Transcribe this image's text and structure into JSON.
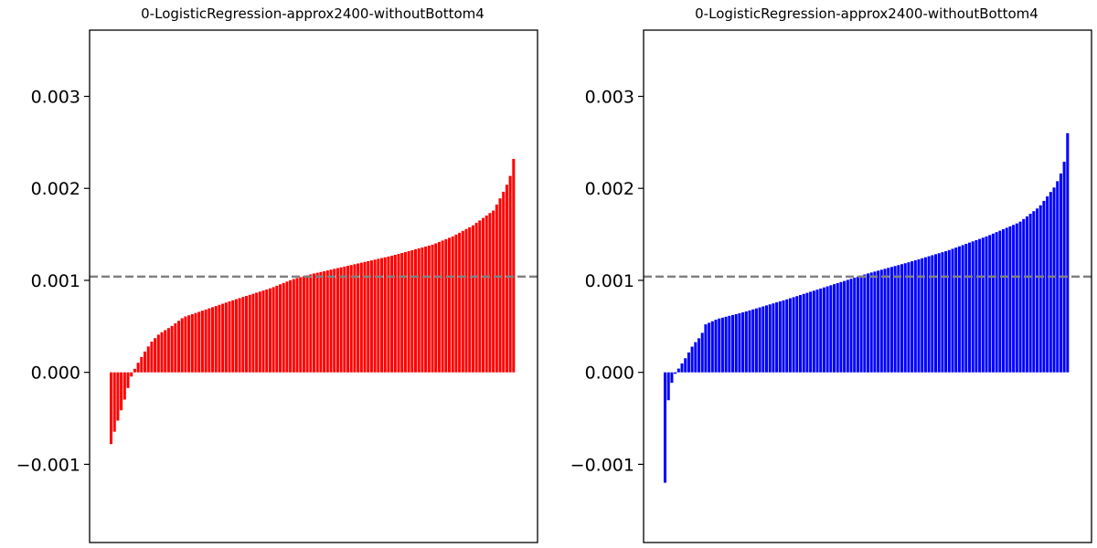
{
  "chart_data": [
    {
      "type": "bar",
      "title": "0-LogisticRegression-approx2400-withoutBottom4",
      "xlabel": "",
      "ylabel": "",
      "ylim": [
        -0.00185,
        0.00372
      ],
      "yticks": [
        -0.001,
        0.0,
        0.001,
        0.002,
        0.003
      ],
      "ytick_labels": [
        "−0.001",
        "0.000",
        "0.001",
        "0.002",
        "0.003"
      ],
      "bar_color": "#ff0000",
      "reference_line": {
        "y": 0.00104,
        "style": "dashed",
        "color": "#808080"
      },
      "grid": false,
      "n_bars": 120,
      "curve_description": "sorted ascending values",
      "sorted_value_knots": [
        [
          0.0,
          -0.00078
        ],
        [
          0.01,
          -0.00062
        ],
        [
          0.02,
          -0.00048
        ],
        [
          0.03,
          -0.00035
        ],
        [
          0.04,
          -0.0002
        ],
        [
          0.05,
          -5e-05
        ],
        [
          0.06,
          5e-05
        ],
        [
          0.08,
          0.0002
        ],
        [
          0.1,
          0.00033
        ],
        [
          0.12,
          0.00042
        ],
        [
          0.15,
          0.0005
        ],
        [
          0.18,
          0.0006
        ],
        [
          0.22,
          0.00066
        ],
        [
          0.3,
          0.00078
        ],
        [
          0.4,
          0.00092
        ],
        [
          0.45,
          0.00101
        ],
        [
          0.5,
          0.00107
        ],
        [
          0.6,
          0.00117
        ],
        [
          0.7,
          0.00127
        ],
        [
          0.8,
          0.00139
        ],
        [
          0.85,
          0.00148
        ],
        [
          0.9,
          0.0016
        ],
        [
          0.95,
          0.00176
        ],
        [
          0.97,
          0.00192
        ],
        [
          0.99,
          0.0021
        ],
        [
          1.0,
          0.00232
        ]
      ]
    },
    {
      "type": "bar",
      "title": "0-LogisticRegression-approx2400-withoutBottom4",
      "xlabel": "",
      "ylabel": "",
      "ylim": [
        -0.00185,
        0.00372
      ],
      "yticks": [
        -0.001,
        0.0,
        0.001,
        0.002,
        0.003
      ],
      "ytick_labels": [
        "−0.001",
        "0.000",
        "0.001",
        "0.002",
        "0.003"
      ],
      "bar_color": "#0000ff",
      "reference_line": {
        "y": 0.00104,
        "style": "dashed",
        "color": "#808080"
      },
      "grid": false,
      "n_bars": 120,
      "curve_description": "sorted ascending values",
      "sorted_value_knots": [
        [
          0.0,
          -0.0012
        ],
        [
          0.004,
          -0.00045
        ],
        [
          0.01,
          -0.00025
        ],
        [
          0.02,
          -5e-05
        ],
        [
          0.035,
          5e-05
        ],
        [
          0.05,
          0.00015
        ],
        [
          0.07,
          0.0003
        ],
        [
          0.09,
          0.0004
        ],
        [
          0.1,
          0.00052
        ],
        [
          0.13,
          0.00058
        ],
        [
          0.2,
          0.00066
        ],
        [
          0.3,
          0.00079
        ],
        [
          0.4,
          0.00093
        ],
        [
          0.45,
          0.001
        ],
        [
          0.5,
          0.00107
        ],
        [
          0.6,
          0.00119
        ],
        [
          0.7,
          0.00132
        ],
        [
          0.8,
          0.00148
        ],
        [
          0.88,
          0.00163
        ],
        [
          0.93,
          0.0018
        ],
        [
          0.97,
          0.00203
        ],
        [
          0.99,
          0.00223
        ],
        [
          1.0,
          0.0026
        ]
      ]
    }
  ]
}
